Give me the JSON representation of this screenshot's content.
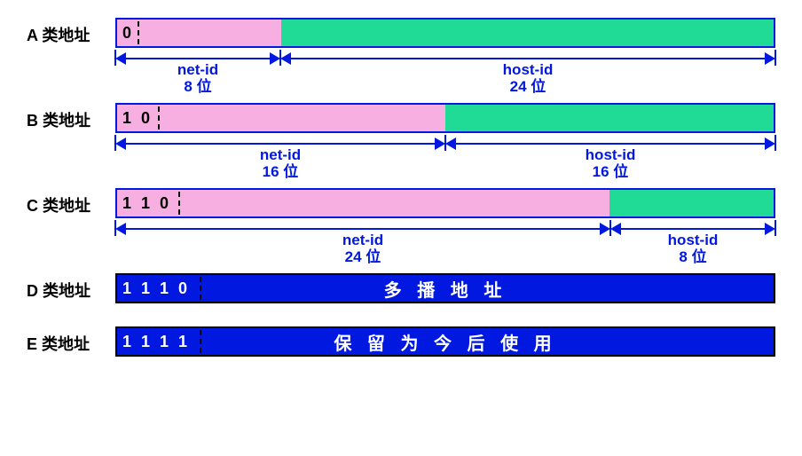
{
  "colors": {
    "border": "#0018e0",
    "net": "#f7aee0",
    "host": "#1fdb95",
    "solid": "#0018e0",
    "dim_text": "#0018e0",
    "prefix_text_dark": "#000000",
    "prefix_text_light": "#ffffff"
  },
  "bar_total_bits": 32,
  "rows": [
    {
      "label": "A 类地址",
      "bar": {
        "border": "#0018e0",
        "segments": [
          {
            "bits": 8,
            "bg": "#f7aee0",
            "prefix": "0",
            "prefix_color": "#000000",
            "prefix_bits": 1
          },
          {
            "bits": 24,
            "bg": "#1fdb95"
          }
        ]
      },
      "dims": [
        {
          "bits": 8,
          "label1": "net-id",
          "label2": "8 位"
        },
        {
          "bits": 24,
          "label1": "host-id",
          "label2": "24 位"
        }
      ]
    },
    {
      "label": "B 类地址",
      "bar": {
        "border": "#0018e0",
        "segments": [
          {
            "bits": 16,
            "bg": "#f7aee0",
            "prefix": "1 0",
            "prefix_color": "#000000",
            "prefix_bits": 2
          },
          {
            "bits": 16,
            "bg": "#1fdb95"
          }
        ]
      },
      "dims": [
        {
          "bits": 16,
          "label1": "net-id",
          "label2": "16 位"
        },
        {
          "bits": 16,
          "label1": "host-id",
          "label2": "16 位"
        }
      ]
    },
    {
      "label": "C 类地址",
      "bar": {
        "border": "#0018e0",
        "segments": [
          {
            "bits": 24,
            "bg": "#f7aee0",
            "prefix": "1 1 0",
            "prefix_color": "#000000",
            "prefix_bits": 3
          },
          {
            "bits": 8,
            "bg": "#1fdb95"
          }
        ]
      },
      "dims": [
        {
          "bits": 24,
          "label1": "net-id",
          "label2": "24 位"
        },
        {
          "bits": 8,
          "label1": "host-id",
          "label2": "8 位"
        }
      ]
    },
    {
      "label": "D 类地址",
      "bar": {
        "border": "#000000",
        "segments": [
          {
            "bits": 32,
            "bg": "#0018e0",
            "prefix": "1 1 1 0",
            "prefix_color": "#ffffff",
            "prefix_bits": 4,
            "center_text": "多 播 地 址"
          }
        ]
      }
    },
    {
      "label": "E 类地址",
      "spacer_before": 18,
      "bar": {
        "border": "#000000",
        "segments": [
          {
            "bits": 32,
            "bg": "#0018e0",
            "prefix": "1 1 1 1",
            "prefix_color": "#ffffff",
            "prefix_bits": 4,
            "center_text": "保 留 为 今 后 使 用"
          }
        ]
      }
    }
  ]
}
